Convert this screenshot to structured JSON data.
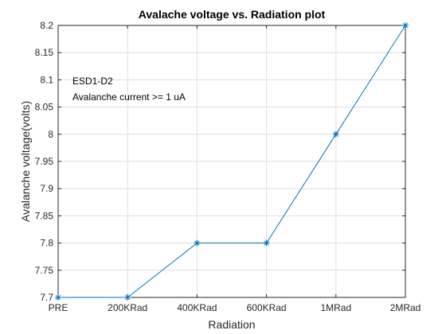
{
  "chart_data": {
    "type": "line",
    "title": "Avalache voltage vs. Radiation plot",
    "xlabel": "Radiation",
    "ylabel": "Avalanche voltage(volts)",
    "categories": [
      "PRE",
      "200KRad",
      "400KRad",
      "600KRad",
      "1MRad",
      "2MRad"
    ],
    "series": [
      {
        "values": [
          7.7,
          7.7,
          7.8,
          7.8,
          8.0,
          8.2
        ],
        "color": "#0072bd",
        "marker": "asterisk"
      }
    ],
    "ylim": [
      7.7,
      8.2
    ],
    "yticks": [
      "7.7",
      "7.75",
      "7.8",
      "7.85",
      "7.9",
      "7.95",
      "8",
      "8.05",
      "8.1",
      "8.15",
      "8.2"
    ],
    "grid": true,
    "annotations": [
      "ESD1-D2",
      "Avalanche current >= 1 uA"
    ]
  }
}
